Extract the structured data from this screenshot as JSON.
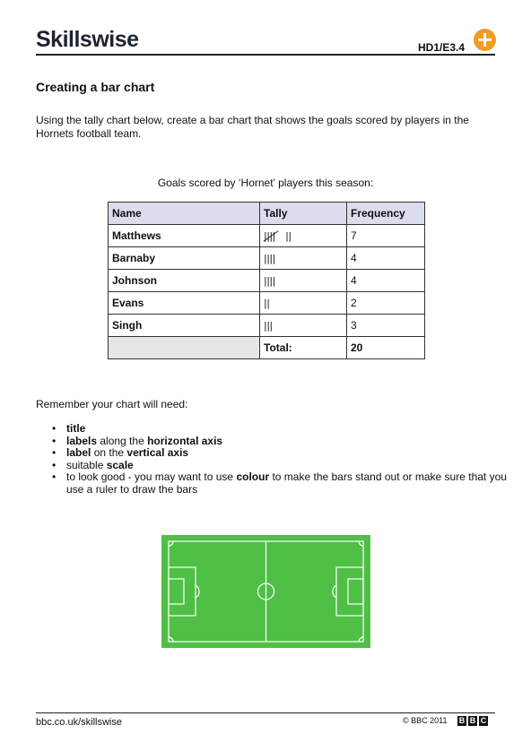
{
  "header": {
    "brand": "Skillswise",
    "code": "HD1/E3.4",
    "badge_symbol": "+",
    "accent_color": "#f29b26"
  },
  "title": "Creating a bar chart",
  "intro": "Using the tally chart below, create a bar chart that shows the goals scored by players in the Hornets football team.",
  "table": {
    "caption": "Goals scored by ‘Hornet’ players this season:",
    "headers": [
      "Name",
      "Tally",
      "Frequency"
    ],
    "header_color": "#dcdcef",
    "rows": [
      {
        "name": "Matthews",
        "tally": "||||",
        "tally_extra": "||",
        "frequency": "7"
      },
      {
        "name": "Barnaby",
        "tally": "||||",
        "frequency": "4"
      },
      {
        "name": "Johnson",
        "tally": "||||",
        "frequency": "4"
      },
      {
        "name": "Evans",
        "tally": "||",
        "frequency": "2"
      },
      {
        "name": "Singh",
        "tally": "|||",
        "frequency": "3"
      }
    ],
    "total_label": "Total:",
    "total_value": "20"
  },
  "remember": {
    "intro": "Remember your chart will need:",
    "items": [
      {
        "parts": [
          {
            "b": true,
            "t": "title"
          }
        ]
      },
      {
        "parts": [
          {
            "b": true,
            "t": "labels"
          },
          {
            "b": false,
            "t": " along the "
          },
          {
            "b": true,
            "t": "horizontal axis"
          }
        ]
      },
      {
        "parts": [
          {
            "b": true,
            "t": "label"
          },
          {
            "b": false,
            "t": " on the "
          },
          {
            "b": true,
            "t": "vertical axis"
          }
        ]
      },
      {
        "parts": [
          {
            "b": false,
            "t": "suitable "
          },
          {
            "b": true,
            "t": "scale"
          }
        ]
      },
      {
        "parts": [
          {
            "b": false,
            "t": "to look good - you may want to use "
          },
          {
            "b": true,
            "t": "colour"
          },
          {
            "b": false,
            "t": " to make the bars stand out or make sure that you use a ruler to draw the bars"
          }
        ]
      }
    ]
  },
  "pitch": {
    "grass_color": "#4fbf45",
    "line_color": "#ffffff"
  },
  "footer": {
    "url": "bbc.co.uk/skillswise",
    "copyright": "© BBC 2011",
    "bbc_letters": [
      "B",
      "B",
      "C"
    ]
  }
}
